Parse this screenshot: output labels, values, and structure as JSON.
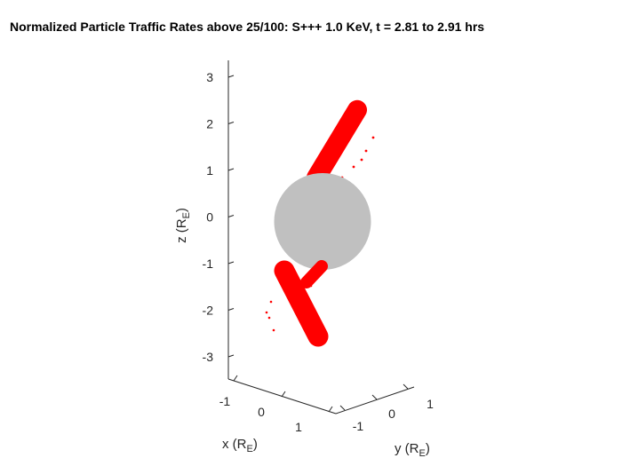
{
  "chart_data": {
    "type": "scatter",
    "title": "Normalized Particle Traffic Rates above 25/100: S+++ 1.0 KeV, t = 2.81 to 2.91 hrs",
    "axes": {
      "x": {
        "label_base": "x (R",
        "label_sub": "E",
        "label_tail": ")",
        "ticks": [
          "-1",
          "0",
          "1"
        ]
      },
      "y": {
        "label_base": "y (R",
        "label_sub": "E",
        "label_tail": ")",
        "ticks": [
          "-1",
          "0",
          "1"
        ]
      },
      "z": {
        "label_base": "z (R",
        "label_sub": "E",
        "label_tail": ")",
        "ticks": [
          "3",
          "2",
          "1",
          "0",
          "-1",
          "-2",
          "-3"
        ],
        "range": [
          -3.3,
          3.3
        ]
      }
    },
    "planet": {
      "center": [
        0,
        0,
        0
      ],
      "radius": 1,
      "color": "#c0c0c0"
    },
    "series": [
      {
        "color": "#ff0000",
        "z_range": [
          1.0,
          2.3
        ]
      },
      {
        "color": "#ff0000",
        "z_range": [
          -2.6,
          -1.0
        ]
      }
    ]
  }
}
